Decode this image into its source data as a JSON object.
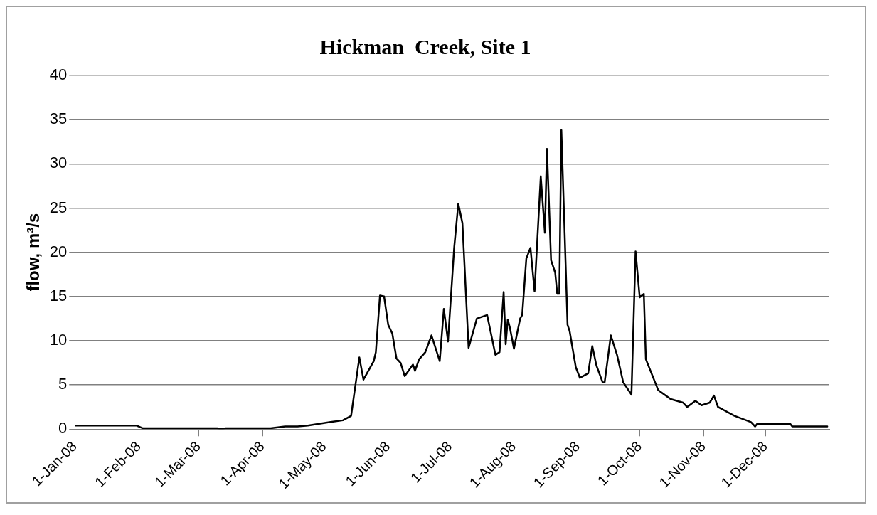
{
  "chart_data": {
    "type": "line",
    "title": "Hickman  Creek, Site 1",
    "ylabel": "flow, m³/s",
    "x": [
      "2008-01-01",
      "2008-01-31",
      "2008-02-03",
      "2008-03-10",
      "2008-03-12",
      "2008-03-14",
      "2008-04-05",
      "2008-04-12",
      "2008-04-18",
      "2008-04-23",
      "2008-05-04",
      "2008-05-10",
      "2008-05-14",
      "2008-05-18",
      "2008-05-20",
      "2008-05-25",
      "2008-05-26",
      "2008-05-28",
      "2008-05-30",
      "2008-06-01",
      "2008-06-03",
      "2008-06-05",
      "2008-06-07",
      "2008-06-09",
      "2008-06-13",
      "2008-06-14",
      "2008-06-16",
      "2008-06-19",
      "2008-06-22",
      "2008-06-26",
      "2008-06-28",
      "2008-06-30",
      "2008-07-03",
      "2008-07-05",
      "2008-07-07",
      "2008-07-10",
      "2008-07-14",
      "2008-07-19",
      "2008-07-23",
      "2008-07-25",
      "2008-07-27",
      "2008-07-28",
      "2008-07-29",
      "2008-07-30",
      "2008-08-01",
      "2008-08-04",
      "2008-08-05",
      "2008-08-07",
      "2008-08-09",
      "2008-08-11",
      "2008-08-14",
      "2008-08-16",
      "2008-08-17",
      "2008-08-19",
      "2008-08-21",
      "2008-08-22",
      "2008-08-23",
      "2008-08-24",
      "2008-08-27",
      "2008-08-28",
      "2008-08-31",
      "2008-09-02",
      "2008-09-06",
      "2008-09-08",
      "2008-09-10",
      "2008-09-13",
      "2008-09-14",
      "2008-09-17",
      "2008-09-20",
      "2008-09-23",
      "2008-09-27",
      "2008-09-29",
      "2008-10-01",
      "2008-10-03",
      "2008-10-04",
      "2008-10-10",
      "2008-10-16",
      "2008-10-22",
      "2008-10-24",
      "2008-10-28",
      "2008-10-31",
      "2008-11-04",
      "2008-11-06",
      "2008-11-08",
      "2008-11-16",
      "2008-11-24",
      "2008-11-26",
      "2008-11-27",
      "2008-12-13",
      "2008-12-14",
      "2008-12-31"
    ],
    "series": [
      {
        "color": "#000000",
        "values": [
          0.4,
          0.4,
          0.1,
          0.1,
          0.0,
          0.1,
          0.1,
          0.3,
          0.3,
          0.4,
          0.8,
          1.0,
          1.5,
          8.1,
          5.6,
          7.7,
          8.7,
          15.1,
          15,
          11.8,
          10.8,
          8.0,
          7.5,
          6.0,
          7.3,
          6.6,
          7.9,
          8.7,
          10.6,
          7.7,
          13.6,
          9.9,
          20.5,
          25.5,
          23.3,
          9.2,
          12.5,
          12.9,
          8.4,
          8.7,
          15.5,
          9.6,
          12.4,
          11.5,
          9.1,
          12.5,
          12.9,
          19.3,
          20.5,
          15.6,
          28.6,
          22.2,
          31.7,
          19.1,
          17.7,
          15.3,
          15.3,
          33.8,
          11.8,
          11.1,
          7.0,
          5.8,
          6.3,
          9.4,
          7.2,
          5.3,
          5.3,
          10.6,
          8.4,
          5.3,
          3.9,
          20.1,
          14.9,
          15.3,
          7.9,
          4.4,
          3.4,
          3.0,
          2.5,
          3.2,
          2.7,
          3.0,
          3.8,
          2.5,
          1.5,
          0.8,
          0.3,
          0.6,
          0.6,
          0.3,
          0.3
        ]
      }
    ],
    "xlim": [
      "2008-01-01",
      "2009-01-01"
    ],
    "xticks": [
      {
        "value": "2008-01-01",
        "label": "1-Jan-08"
      },
      {
        "value": "2008-02-01",
        "label": "1-Feb-08"
      },
      {
        "value": "2008-03-01",
        "label": "1-Mar-08"
      },
      {
        "value": "2008-04-01",
        "label": "1-Apr-08"
      },
      {
        "value": "2008-05-01",
        "label": "1-May-08"
      },
      {
        "value": "2008-06-01",
        "label": "1-Jun-08"
      },
      {
        "value": "2008-07-01",
        "label": "1-Jul-08"
      },
      {
        "value": "2008-08-01",
        "label": "1-Aug-08"
      },
      {
        "value": "2008-09-01",
        "label": "1-Sep-08"
      },
      {
        "value": "2008-10-01",
        "label": "1-Oct-08"
      },
      {
        "value": "2008-11-01",
        "label": "1-Nov-08"
      },
      {
        "value": "2008-12-01",
        "label": "1-Dec-08"
      }
    ],
    "ylim": [
      0,
      40
    ],
    "yticks": [
      0,
      5,
      10,
      15,
      20,
      25,
      30,
      35,
      40
    ],
    "grid": "y",
    "legend": false,
    "marker": "none",
    "line_style": "solid"
  }
}
